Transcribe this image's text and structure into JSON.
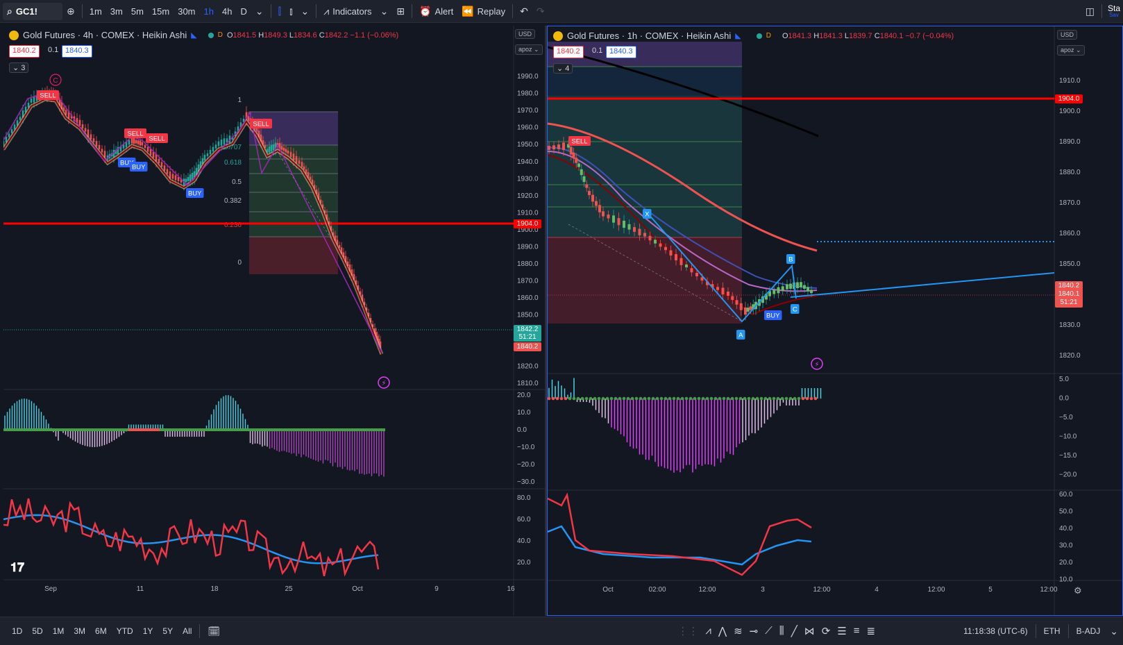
{
  "toolbar": {
    "symbol": "GC1!",
    "intervals": [
      "1m",
      "3m",
      "5m",
      "15m",
      "30m",
      "1h",
      "4h",
      "D"
    ],
    "active_interval": "1h",
    "indicators_label": "Indicators",
    "alert_label": "Alert",
    "replay_label": "Replay",
    "right_text": "Sta",
    "right_subtext": "Sav"
  },
  "left_chart": {
    "title": "Gold Futures · 4h · COMEX · Heikin Ashi",
    "badge": "D",
    "ohlc": {
      "o": "1841.5",
      "h": "1849.3",
      "l": "1834.6",
      "c": "1842.2",
      "chg": "−1.1 (−0.06%)"
    },
    "sell_price": "1840.2",
    "step": "0.1",
    "buy_price": "1840.3",
    "collapse_count": "3",
    "currency": "USD",
    "scale_mode": "apoz",
    "price_ticks": [
      "1990.0",
      "1980.0",
      "1970.0",
      "1960.0",
      "1950.0",
      "1940.0",
      "1930.0",
      "1920.0",
      "1910.0",
      "1900.0",
      "1890.0",
      "1880.0",
      "1870.0",
      "1860.0",
      "1850.0",
      "1820.0",
      "1810.0"
    ],
    "price_tags": {
      "level": "1904.0",
      "last": "1842.2",
      "countdown": "51:21",
      "bid": "1840.2"
    },
    "macd_ticks": [
      "20.0",
      "10.0",
      "0.0",
      "−10.0",
      "−20.0",
      "−30.0"
    ],
    "rsi_ticks": [
      "80.0",
      "60.0",
      "40.0",
      "20.0"
    ],
    "time_labels": [
      "Sep",
      "11",
      "18",
      "25",
      "Oct",
      "9",
      "16"
    ],
    "fib_labels": [
      "1",
      "0.707",
      "0.618",
      "0.5",
      "0.382",
      "0.236",
      "0"
    ],
    "signals": [
      "SELL",
      "SELL",
      "SELL",
      "BUY",
      "BUY",
      "BUY",
      "SELL"
    ],
    "wave_label": "C"
  },
  "right_chart": {
    "title": "Gold Futures · 1h · COMEX · Heikin Ashi",
    "badge": "D",
    "ohlc": {
      "o": "1841.3",
      "h": "1841.3",
      "l": "1839.7",
      "c": "1840.1",
      "chg": "−0.7 (−0.04%)"
    },
    "sell_price": "1840.2",
    "step": "0.1",
    "buy_price": "1840.3",
    "collapse_count": "4",
    "currency": "USD",
    "scale_mode": "apoz",
    "price_ticks": [
      "1910.0",
      "1900.0",
      "1890.0",
      "1880.0",
      "1870.0",
      "1860.0",
      "1850.0",
      "1830.0",
      "1820.0"
    ],
    "price_tags": {
      "level": "1904.0",
      "bid": "1840.2",
      "last": "1840.1",
      "countdown": "51:21"
    },
    "macd_ticks": [
      "5.0",
      "0.0",
      "−5.0",
      "−10.0",
      "−15.0",
      "−20.0"
    ],
    "rsi_ticks": [
      "60.0",
      "50.0",
      "40.0",
      "30.0",
      "20.0",
      "10.0"
    ],
    "time_labels": [
      "Oct",
      "02:00",
      "12:00",
      "3",
      "12:00",
      "4",
      "12:00",
      "5",
      "12:00"
    ],
    "signals": [
      "SELL",
      "BUY"
    ],
    "pattern_points": [
      "X",
      "A",
      "B",
      "C"
    ]
  },
  "bottombar": {
    "ranges": [
      "1D",
      "5D",
      "1M",
      "3M",
      "6M",
      "YTD",
      "1Y",
      "5Y",
      "All"
    ],
    "clock": "11:18:38 (UTC-6)",
    "session": "ETH",
    "adj": "B-ADJ"
  },
  "colors": {
    "bg": "#131722",
    "up": "#26a69a",
    "down": "#ef5350",
    "level": "#ff0000",
    "blue": "#2196f3",
    "purple": "#9c27b0"
  }
}
